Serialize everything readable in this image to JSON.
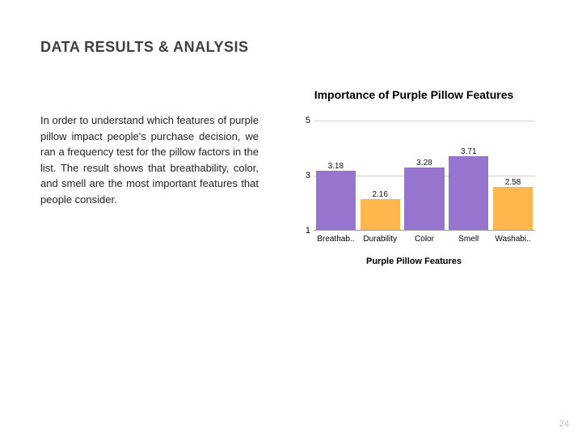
{
  "header": {
    "title": "DATA RESULTS & ANALYSIS"
  },
  "body": {
    "paragraph": "In order to understand which features of purple pillow impact people's purchase decision, we ran a frequency test for the pillow factors in the list.  The result shows that breathability, color, and smell  are the most important features that people consider."
  },
  "chart": {
    "type": "bar",
    "title": "Importance of Purple Pillow Features",
    "xlabel": "Purple Pillow Features",
    "ylim": [
      1,
      5
    ],
    "yticks": [
      1,
      3,
      5
    ],
    "categories": [
      "Breathab..",
      "Durability",
      "Color",
      "Smell",
      "Washabi.."
    ],
    "values": [
      3.18,
      2.16,
      3.28,
      3.71,
      2.58
    ],
    "bar_colors": [
      "#9575cd",
      "#ffb74d",
      "#9575cd",
      "#9575cd",
      "#ffb74d"
    ],
    "value_label_fontsize": 10,
    "axis_fontsize": 11,
    "grid_color": "rgba(180,180,180,0.6)",
    "background_color": "#ffffff"
  },
  "page_number": "24"
}
